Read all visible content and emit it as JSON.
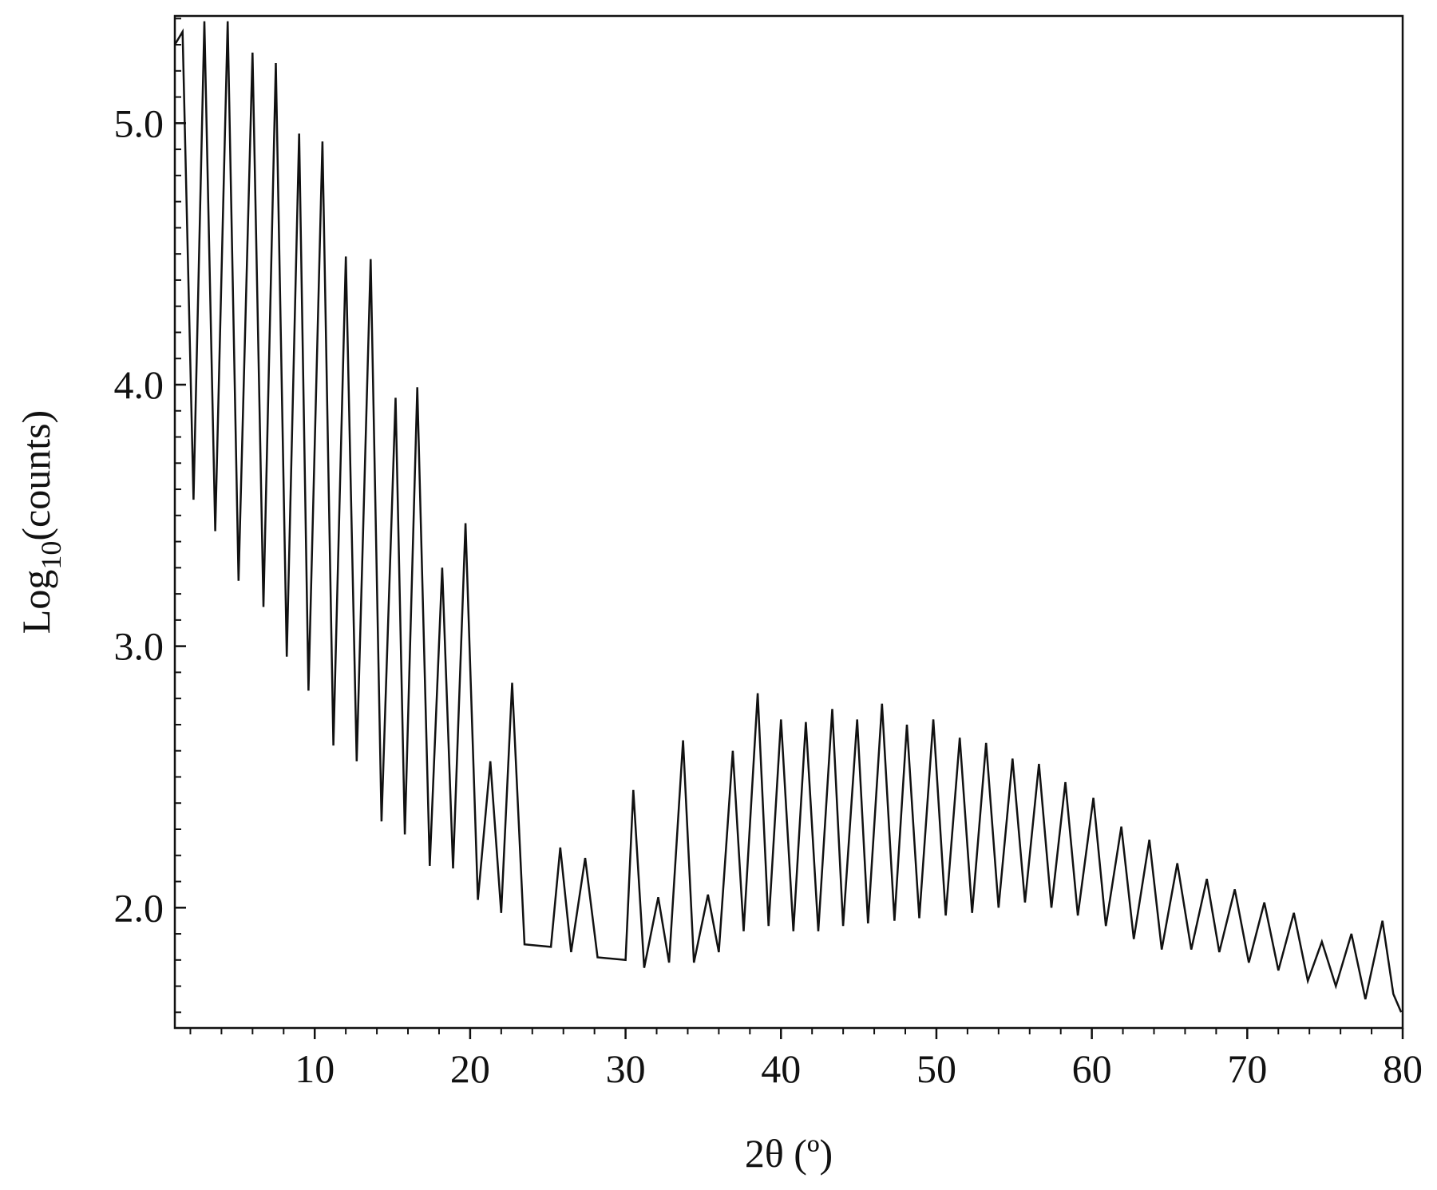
{
  "chart_data": {
    "type": "line",
    "xlabel": "2θ  (º)",
    "ylabel": {
      "base": "Log",
      "subscript": "10",
      "rest": "(counts)"
    },
    "color": "#111111",
    "x": [
      1.0,
      1.5,
      2.2,
      2.9,
      3.6,
      4.4,
      5.1,
      6.0,
      6.7,
      7.5,
      8.2,
      9.0,
      9.6,
      10.5,
      11.2,
      12.0,
      12.7,
      13.6,
      14.3,
      15.2,
      15.8,
      16.6,
      17.4,
      18.2,
      18.9,
      19.7,
      20.5,
      21.3,
      22.0,
      22.7,
      23.5,
      25.2,
      25.8,
      26.5,
      27.4,
      28.2,
      30.0,
      30.5,
      31.2,
      32.1,
      32.8,
      33.7,
      34.4,
      35.3,
      36.0,
      36.9,
      37.6,
      38.5,
      39.2,
      40.0,
      40.8,
      41.6,
      42.4,
      43.3,
      44.0,
      44.9,
      45.6,
      46.5,
      47.3,
      48.1,
      48.9,
      49.8,
      50.6,
      51.5,
      52.3,
      53.2,
      54.0,
      54.9,
      55.7,
      56.6,
      57.4,
      58.3,
      59.1,
      60.1,
      60.9,
      61.9,
      62.7,
      63.7,
      64.5,
      65.5,
      66.4,
      67.4,
      68.2,
      69.2,
      70.1,
      71.1,
      72.0,
      73.0,
      73.9,
      74.8,
      75.7,
      76.7,
      77.6,
      78.7,
      79.4,
      79.9
    ],
    "values": [
      5.3,
      5.35,
      3.56,
      5.39,
      3.44,
      5.39,
      3.25,
      5.27,
      3.15,
      5.23,
      2.96,
      4.96,
      2.83,
      4.93,
      2.62,
      4.49,
      2.56,
      4.48,
      2.33,
      3.95,
      2.28,
      3.99,
      2.16,
      3.3,
      2.15,
      3.47,
      2.03,
      2.56,
      1.98,
      2.86,
      1.86,
      1.85,
      2.23,
      1.83,
      2.19,
      1.81,
      1.8,
      2.45,
      1.77,
      2.04,
      1.79,
      2.64,
      1.79,
      2.05,
      1.83,
      2.6,
      1.91,
      2.82,
      1.93,
      2.72,
      1.91,
      2.71,
      1.91,
      2.76,
      1.93,
      2.72,
      1.94,
      2.78,
      1.95,
      2.7,
      1.96,
      2.72,
      1.97,
      2.65,
      1.98,
      2.63,
      2.0,
      2.57,
      2.02,
      2.55,
      2.0,
      2.48,
      1.97,
      2.42,
      1.93,
      2.31,
      1.88,
      2.26,
      1.84,
      2.17,
      1.84,
      2.11,
      1.83,
      2.07,
      1.79,
      2.02,
      1.76,
      1.98,
      1.72,
      1.87,
      1.7,
      1.9,
      1.65,
      1.95,
      1.67,
      1.6
    ],
    "xlim": [
      1,
      80
    ],
    "xticks": [
      10,
      20,
      30,
      40,
      50,
      60,
      70,
      80
    ],
    "xminorticks": [
      2,
      4,
      6,
      8,
      12,
      14,
      16,
      18,
      22,
      24,
      26,
      28,
      32,
      34,
      36,
      38,
      42,
      44,
      46,
      48,
      52,
      54,
      56,
      58,
      62,
      64,
      66,
      68,
      72,
      74,
      76,
      78
    ],
    "ylim": [
      1.54,
      5.41
    ],
    "yticks": [
      {
        "value": 2,
        "label": "2.0"
      },
      {
        "value": 3,
        "label": "3.0"
      },
      {
        "value": 4,
        "label": "4.0"
      },
      {
        "value": 5,
        "label": "5.0"
      }
    ],
    "yminorticks": [
      1.6,
      1.7,
      1.8,
      1.9,
      2.1,
      2.2,
      2.3,
      2.4,
      2.5,
      2.6,
      2.7,
      2.8,
      2.9,
      3.1,
      3.2,
      3.3,
      3.4,
      3.5,
      3.6,
      3.7,
      3.8,
      3.9,
      4.1,
      4.2,
      4.3,
      4.4,
      4.5,
      4.6,
      4.7,
      4.8,
      4.9,
      5.1,
      5.2,
      5.3,
      5.4
    ],
    "grid": false
  }
}
